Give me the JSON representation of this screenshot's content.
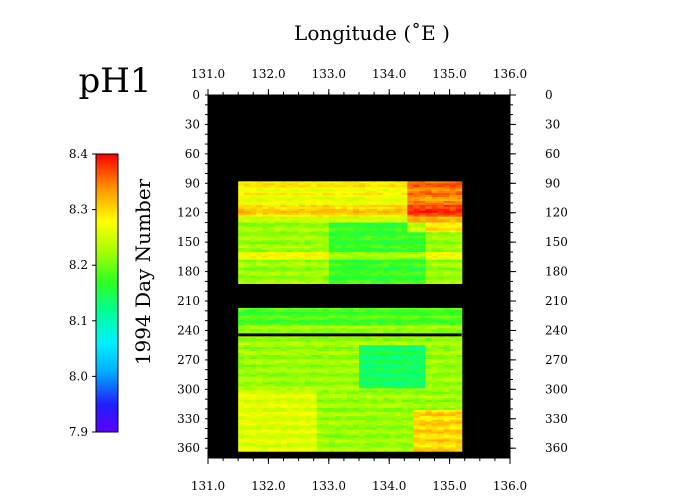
{
  "chart_data": {
    "type": "heatmap",
    "title": "pH1",
    "xlabel": "Longitude (˚E )",
    "ylabel": "1994  Day Number",
    "xlim": [
      131.0,
      136.0
    ],
    "ylim": [
      0,
      370
    ],
    "x_ticks": [
      "131.0",
      "132.0",
      "133.0",
      "134.0",
      "135.0",
      "136.0"
    ],
    "y_ticks": [
      "0",
      "30",
      "60",
      "90",
      "120",
      "150",
      "180",
      "210",
      "240",
      "270",
      "300",
      "330",
      "360"
    ],
    "colorbar": {
      "min": 7.9,
      "max": 8.4,
      "ticks": [
        "8.4",
        "8.3",
        "8.2",
        "8.1",
        "8.0",
        "7.9"
      ]
    },
    "data_extent": {
      "longitude": [
        131.5,
        135.2
      ],
      "day_blocks": [
        [
          88,
          192
        ],
        [
          217,
          362
        ]
      ]
    },
    "background_color": "#000000",
    "grid": false
  }
}
